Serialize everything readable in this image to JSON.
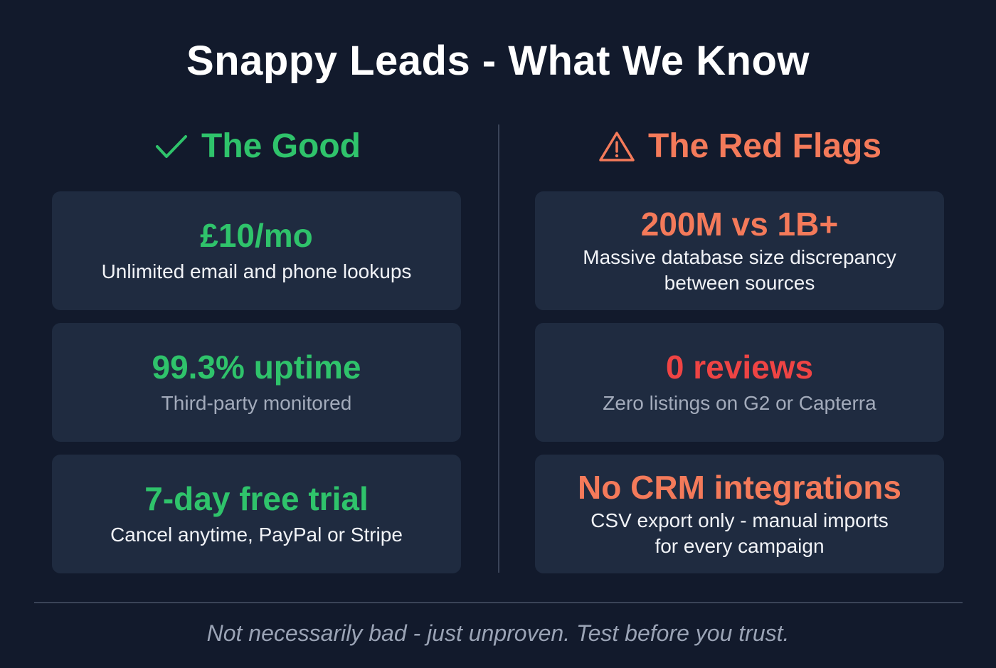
{
  "title": "Snappy Leads - What We Know",
  "colors": {
    "background": "#121a2c",
    "card": "#1f2b40",
    "good": "#2fc36b",
    "warning": "#f47a5a",
    "danger": "#ef4444"
  },
  "good": {
    "icon": "check-icon",
    "heading": "The Good",
    "cards": [
      {
        "headline": "£10/mo",
        "detail": "Unlimited email and phone lookups"
      },
      {
        "headline": "99.3% uptime",
        "detail": "Third-party monitored"
      },
      {
        "headline": "7-day free trial",
        "detail": "Cancel anytime, PayPal or Stripe"
      }
    ]
  },
  "red_flags": {
    "icon": "warning-triangle-icon",
    "heading": "The Red Flags",
    "cards": [
      {
        "headline": "200M vs 1B+",
        "detail": "Massive database size discrepancy between sources"
      },
      {
        "headline": "0 reviews",
        "detail": "Zero listings on G2 or Capterra"
      },
      {
        "headline": "No CRM integrations",
        "detail": "CSV export only - manual imports for every campaign"
      }
    ]
  },
  "footer": "Not necessarily bad - just unproven. Test before you trust."
}
